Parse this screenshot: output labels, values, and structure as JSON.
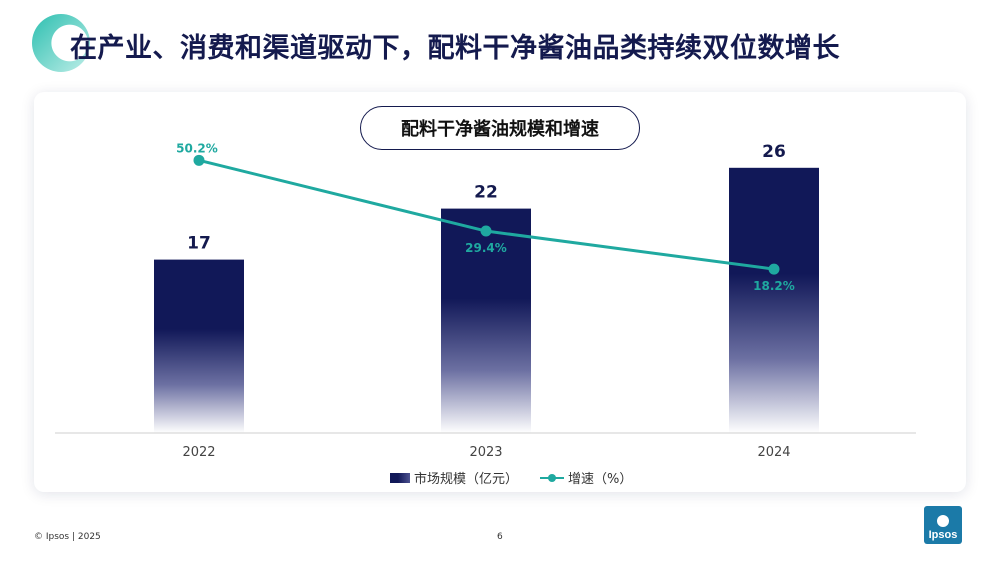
{
  "header": {
    "title": "在产业、消费和渠道驱动下，配料干净酱油品类持续双位数增长"
  },
  "chart_data": {
    "type": "bar",
    "title": "配料干净酱油规模和增速",
    "categories": [
      "2022",
      "2023",
      "2024"
    ],
    "series": [
      {
        "name": "市场规模（亿元）",
        "kind": "bar",
        "values": [
          17,
          22,
          26
        ],
        "labels": [
          "17",
          "22",
          "26"
        ],
        "color": "#111858"
      },
      {
        "name": "增速（%）",
        "kind": "line",
        "values": [
          50.2,
          29.4,
          18.2
        ],
        "labels": [
          "50.2%",
          "29.4%",
          "18.2%"
        ],
        "color": "#1fa9a0"
      }
    ],
    "ylim_bar": [
      0,
      30
    ],
    "ylim_line": [
      -30,
      60
    ],
    "legend_position": "bottom"
  },
  "colors": {
    "navy": "#141a4e",
    "teal": "#1fa9a0",
    "brand": "#1b7aa8"
  },
  "footer": {
    "copyright": "© Ipsos | 2025",
    "page_number": "6",
    "brand": "Ipsos"
  }
}
